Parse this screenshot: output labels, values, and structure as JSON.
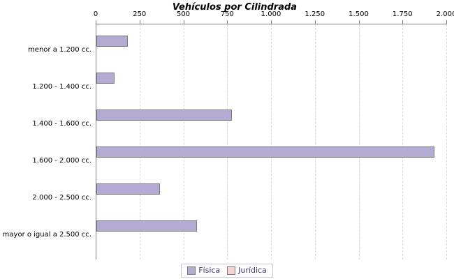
{
  "chart_data": {
    "type": "bar",
    "orientation": "horizontal",
    "title": "Vehículos por Cilindrada",
    "categories": [
      "menor a 1.200 cc.",
      "1.200 - 1.400 cc.",
      "1.400 - 1.600 cc.",
      "1.600 - 2.000 cc.",
      "2.000 - 2.500 cc.",
      "mayor o igual a 2.500 cc."
    ],
    "series": [
      {
        "name": "Física",
        "color": "#b4aad4",
        "values": [
          170,
          95,
          765,
          1920,
          355,
          565
        ]
      },
      {
        "name": "Jurídica",
        "color": "#f8d2d0",
        "values": [
          0,
          0,
          0,
          0,
          0,
          0
        ]
      }
    ],
    "xlim": [
      0,
      2000
    ],
    "x_ticks": [
      {
        "label": "0",
        "value": 0
      },
      {
        "label": "250",
        "value": 250
      },
      {
        "label": "500",
        "value": 500
      },
      {
        "label": "750",
        "value": 750
      },
      {
        "label": "1.000",
        "value": 1000
      },
      {
        "label": "1.250",
        "value": 1250
      },
      {
        "label": "1.500",
        "value": 1500
      },
      {
        "label": "1.750",
        "value": 1750
      },
      {
        "label": "2.000",
        "value": 2000
      }
    ],
    "grid": "dashed-vertical-on",
    "legend_position": "bottom-center",
    "colors": {
      "axis": "#808080",
      "gridline": "#d9d9d9",
      "bar_border": "#7b7b7b",
      "legend_text": "#44318c",
      "text": "#000000"
    }
  }
}
